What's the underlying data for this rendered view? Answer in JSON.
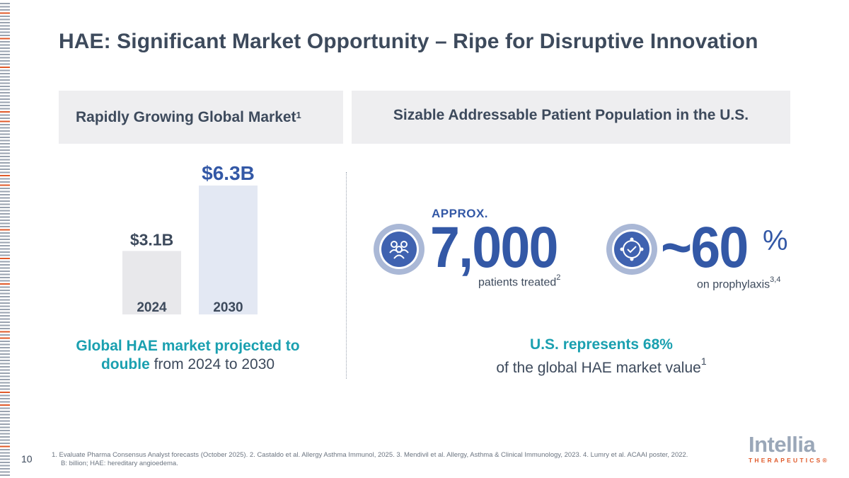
{
  "title": "HAE: Significant Market Opportunity – Ripe for Disruptive Innovation",
  "left_panel": {
    "heading": "Rapidly Growing Global Market",
    "heading_sup": "1",
    "caption_highlight_1": "Global HAE market projected to",
    "caption_highlight_2": "double",
    "caption_rest": " from 2024 to 2030"
  },
  "right_panel": {
    "heading": "Sizable Addressable Patient Population in the U.S.",
    "stat1": {
      "prefix": "APPROX.",
      "value": "7,000",
      "label": "patients treated",
      "label_sup": "2",
      "icon": "people-group-icon"
    },
    "stat2": {
      "value": "~60",
      "unit": "%",
      "label": "on prophylaxis",
      "label_sup": "3,4",
      "icon": "cycle-check-icon"
    },
    "caption_highlight": "U.S. represents 68%",
    "caption_rest": "of the global HAE market value",
    "caption_sup": "1"
  },
  "chart_data": {
    "type": "bar",
    "title": "Rapidly Growing Global Market",
    "categories": [
      "2024",
      "2030"
    ],
    "values": [
      3.1,
      6.3
    ],
    "value_labels": [
      "$3.1B",
      "$6.3B"
    ],
    "unit": "USD billions",
    "ylim": [
      0,
      6.3
    ],
    "colors": [
      "#e8e8eb",
      "#e3e8f3"
    ],
    "label_colors": [
      "#3d4a5c",
      "#3358a6"
    ]
  },
  "footer": {
    "page_number": "10",
    "footnote_line1": "1. Evaluate Pharma Consensus Analyst forecasts (October 2025). 2. Castaldo et al. Allergy Asthma Immunol, 2025. 3. Mendivil et al. Allergy, Asthma & Clinical Immunology, 2023. 4. Lumry et al. ACAAI poster, 2022.",
    "footnote_line2": "B: billion; HAE: hereditary angioedema.",
    "logo_word": "Intellia",
    "logo_sub": "THERAPEUTICS®"
  },
  "colors": {
    "accent_blue": "#3358a6",
    "teal": "#1aa0b0",
    "stripe_orange": "#e05a2a",
    "text": "#3d4a5c"
  }
}
